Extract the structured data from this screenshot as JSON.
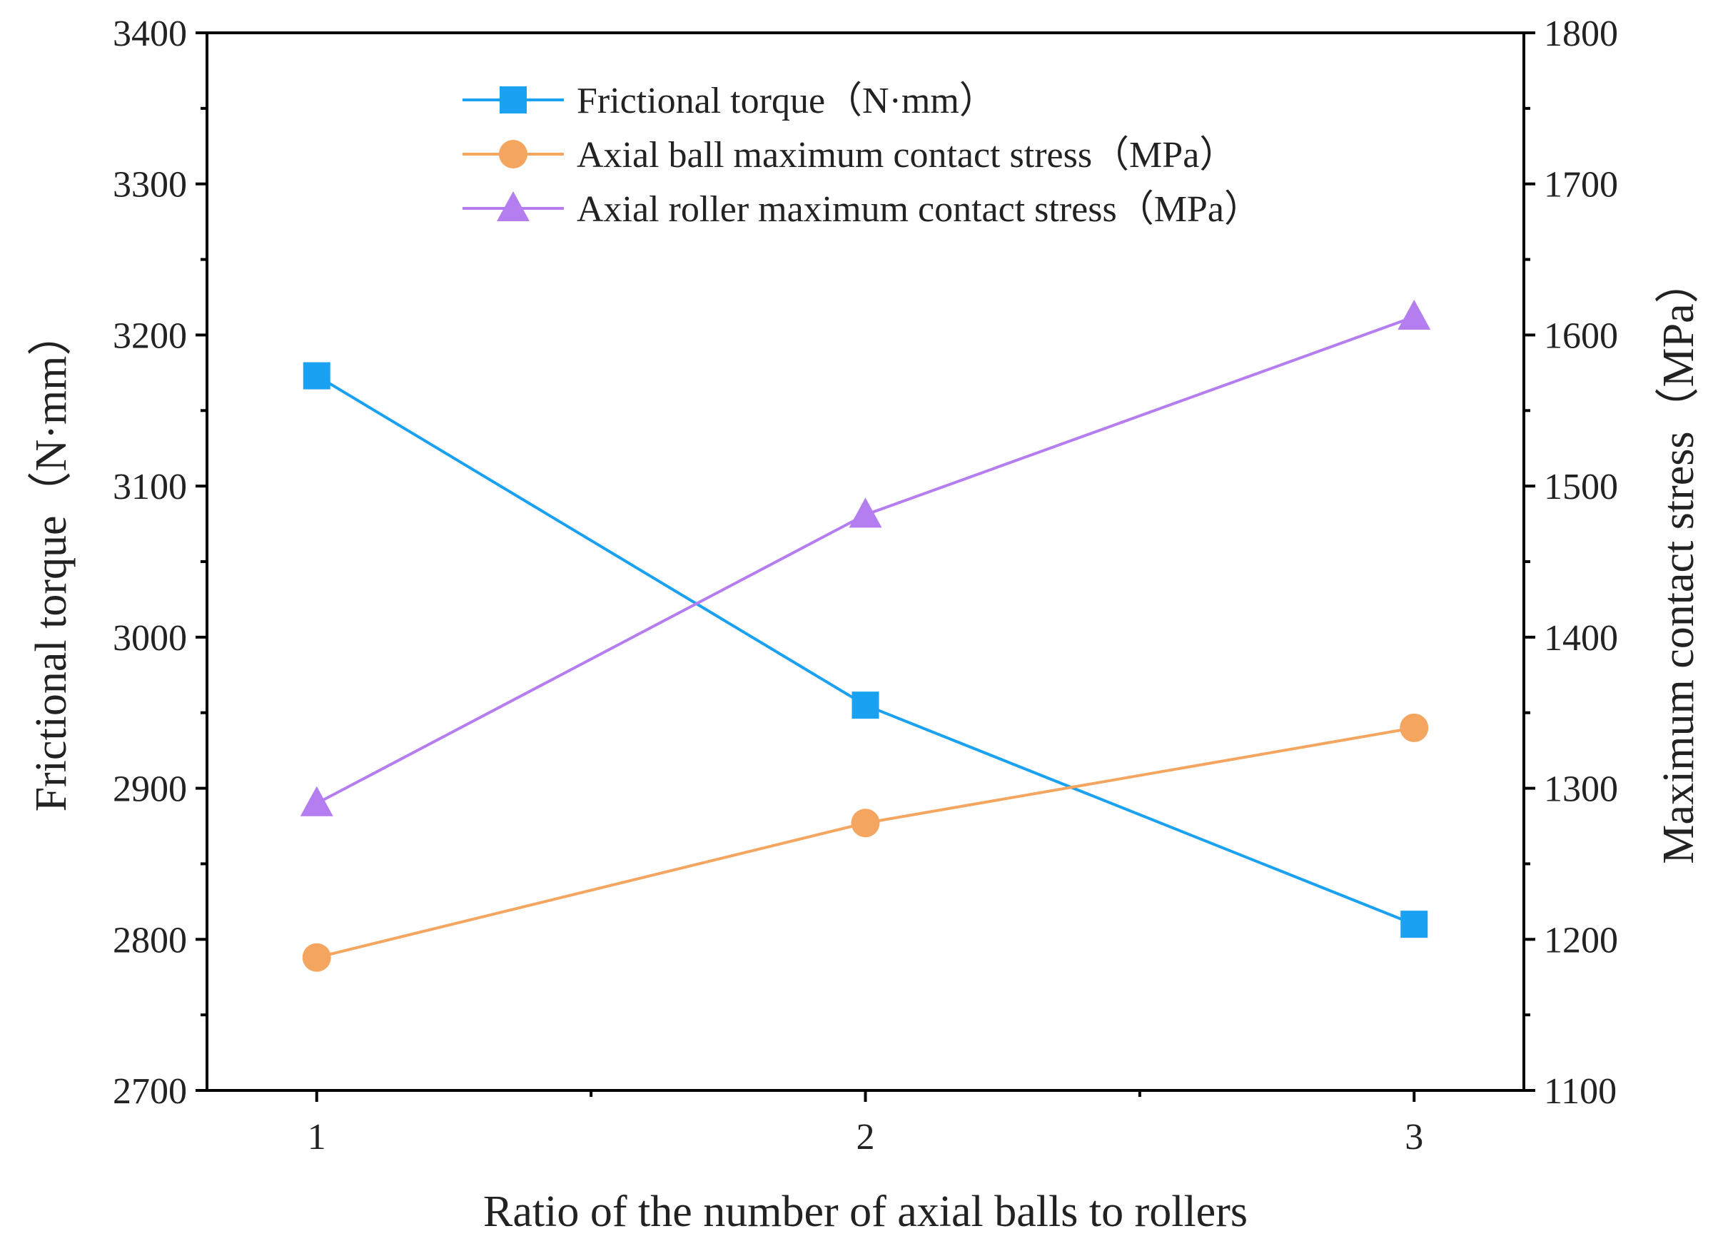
{
  "chart_data": {
    "type": "line",
    "x": [
      1,
      2,
      3
    ],
    "xlabel": "Ratio of the number of axial balls to rollers",
    "ylabel_left": "Frictional torque（N·mm）",
    "ylabel_right": "Maximum contact stress（MPa）",
    "xlim": [
      0.8,
      3.2
    ],
    "ylim_left": [
      2700,
      3400
    ],
    "ylim_right": [
      1100,
      1800
    ],
    "x_ticks": [
      1,
      2,
      3
    ],
    "y_ticks_left": [
      2700,
      2800,
      2900,
      3000,
      3100,
      3200,
      3300,
      3400
    ],
    "y_ticks_right": [
      1100,
      1200,
      1300,
      1400,
      1500,
      1600,
      1700,
      1800
    ],
    "legend_position": "top-center",
    "series": [
      {
        "name": "Frictional torque（N·mm）",
        "axis": "left",
        "marker": "square",
        "color": "#1ba1f2",
        "values": [
          3173,
          2955,
          2810
        ]
      },
      {
        "name": "Axial ball maximum contact stress（MPa）",
        "axis": "right",
        "marker": "circle",
        "color": "#f4a661",
        "values": [
          1188,
          1277,
          1340
        ]
      },
      {
        "name": "Axial roller maximum contact stress（MPa）",
        "axis": "right",
        "marker": "triangle",
        "color": "#b57ef0",
        "values": [
          1290,
          1481,
          1612
        ]
      }
    ]
  }
}
